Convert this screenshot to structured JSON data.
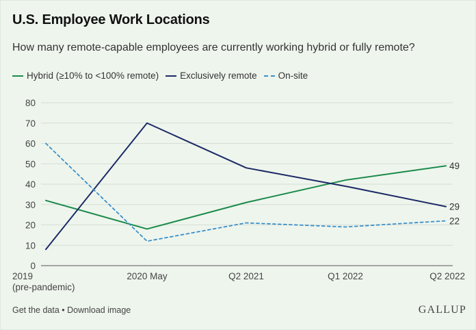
{
  "header": {
    "title": "U.S. Employee Work Locations",
    "subtitle": "How many remote-capable employees are currently working hybrid or fully remote?"
  },
  "legend": {
    "hybrid": "Hybrid (≥10% to <100% remote)",
    "remote": "Exclusively remote",
    "onsite": "On-site"
  },
  "footer": {
    "get_data": "Get the data",
    "separator": " • ",
    "download": "Download image",
    "brand": "GALLUP"
  },
  "colors": {
    "hybrid": "#1a8a4a",
    "remote": "#1b2a66",
    "onsite": "#3a8fc8"
  },
  "chart_data": {
    "type": "line",
    "title": "U.S. Employee Work Locations",
    "subtitle": "How many remote-capable employees are currently working hybrid or fully remote?",
    "categories": [
      "2019 (pre-pandemic)",
      "2020 May",
      "Q2 2021",
      "Q1 2022",
      "Q2 2022"
    ],
    "category_lines": [
      [
        "2019",
        "(pre-pandemic)"
      ],
      [
        "2020 May"
      ],
      [
        "Q2 2021"
      ],
      [
        "Q1 2022"
      ],
      [
        "Q2 2022"
      ]
    ],
    "ylim": [
      0,
      80
    ],
    "yticks": [
      0,
      10,
      20,
      30,
      40,
      50,
      60,
      70,
      80
    ],
    "grid": true,
    "legend_position": "top-left",
    "series": [
      {
        "name": "Hybrid (≥10% to <100% remote)",
        "key": "hybrid",
        "values": [
          32,
          18,
          31,
          42,
          49
        ],
        "style": "solid",
        "end_label": "49"
      },
      {
        "name": "Exclusively remote",
        "key": "remote",
        "values": [
          8,
          70,
          48,
          39,
          29
        ],
        "style": "solid",
        "end_label": "29"
      },
      {
        "name": "On-site",
        "key": "onsite",
        "values": [
          60,
          12,
          21,
          19,
          22
        ],
        "style": "dashed",
        "end_label": "22"
      }
    ]
  }
}
